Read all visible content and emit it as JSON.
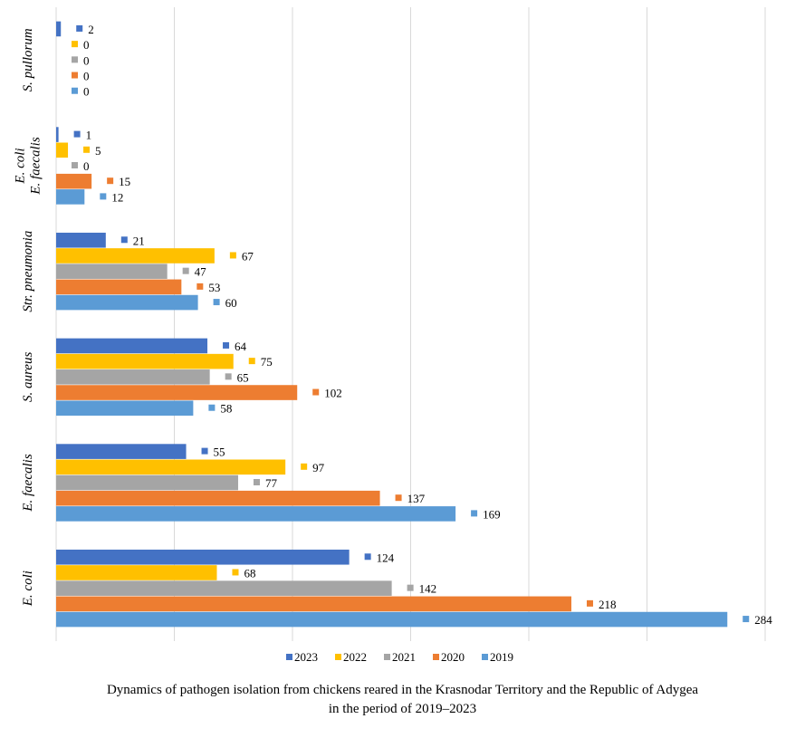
{
  "chart_data": {
    "type": "bar",
    "orientation": "horizontal",
    "categories": [
      "E. coli",
      "E. faecalis",
      "S. aureus",
      "Str. pneumonia",
      "E. coli\nE. faecalis",
      "S. pullorum"
    ],
    "series": [
      {
        "name": "2023",
        "color": "#4472C4",
        "values": [
          124,
          55,
          64,
          21,
          1,
          2
        ]
      },
      {
        "name": "2022",
        "color": "#FFC000",
        "values": [
          68,
          97,
          75,
          67,
          5,
          0
        ]
      },
      {
        "name": "2021",
        "color": "#A5A5A5",
        "values": [
          142,
          77,
          65,
          47,
          0,
          0
        ]
      },
      {
        "name": "2020",
        "color": "#ED7D31",
        "values": [
          218,
          137,
          102,
          53,
          15,
          0
        ]
      },
      {
        "name": "2019",
        "color": "#5B9BD5",
        "values": [
          284,
          169,
          58,
          60,
          12,
          0
        ]
      }
    ],
    "xlim": [
      0,
      300
    ],
    "grid": true,
    "legend": "bottom",
    "title": "",
    "xlabel": "",
    "ylabel": ""
  },
  "caption": {
    "line1": "Dynamics of pathogen isolation from chickens reared in the Krasnodar Territory and the Republic of Adygea",
    "line2": "in the period of 2019–2023"
  }
}
